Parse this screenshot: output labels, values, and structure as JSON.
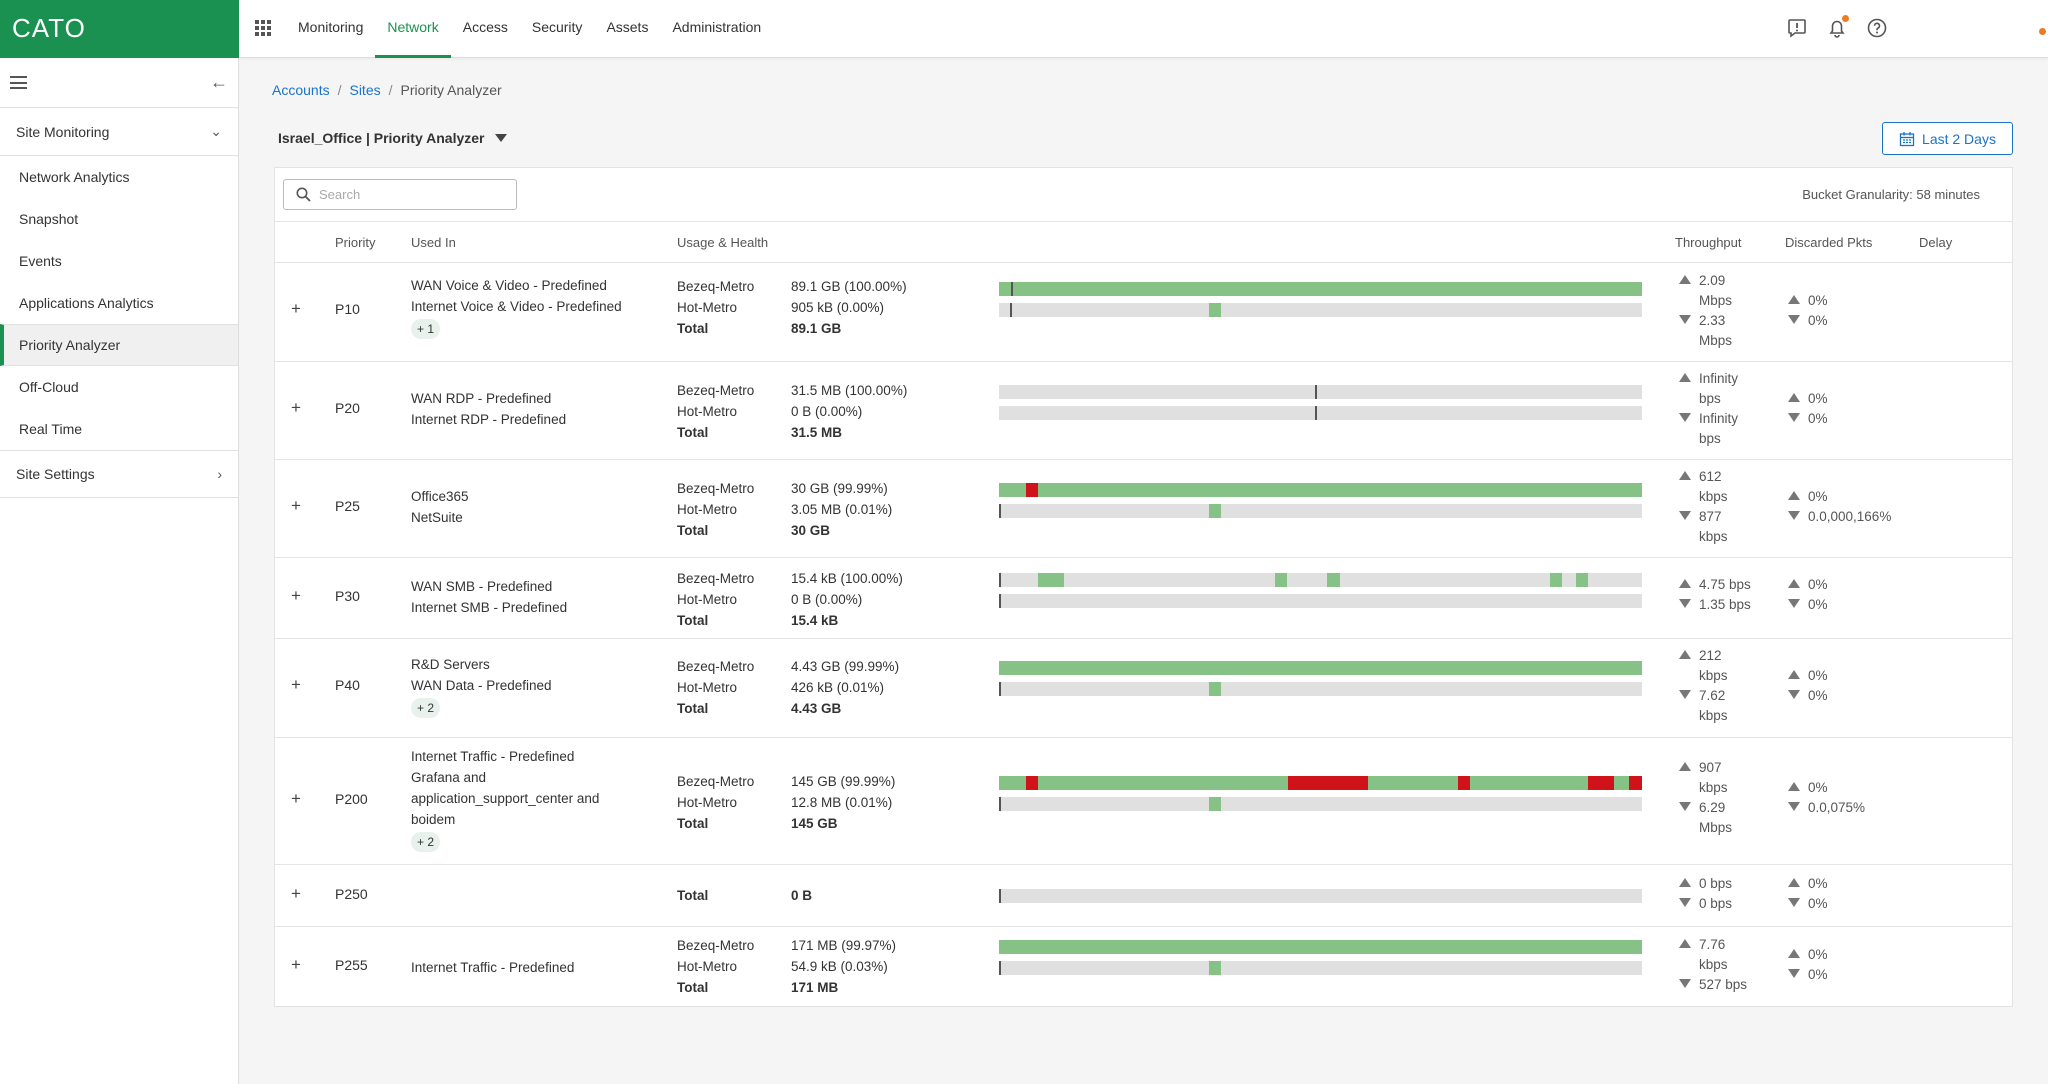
{
  "app": {
    "logo": "CATO"
  },
  "nav": {
    "tabs": [
      "Monitoring",
      "Network",
      "Access",
      "Security",
      "Assets",
      "Administration"
    ],
    "active": "Network"
  },
  "sidebar": {
    "section_monitoring": "Site Monitoring",
    "items": [
      "Network Analytics",
      "Snapshot",
      "Events",
      "Applications Analytics",
      "Priority Analyzer",
      "Off-Cloud",
      "Real Time"
    ],
    "active_item": "Priority Analyzer",
    "section_settings": "Site Settings"
  },
  "breadcrumb": {
    "accounts": "Accounts",
    "sites": "Sites",
    "current": "Priority Analyzer",
    "sep": "/"
  },
  "page": {
    "title": "Israel_Office | Priority Analyzer",
    "date_range": "Last 2 Days"
  },
  "search": {
    "placeholder": "Search",
    "value": ""
  },
  "granularity": "Bucket Granularity: 58 minutes",
  "columns": {
    "priority": "Priority",
    "used_in": "Used In",
    "usage": "Usage & Health",
    "throughput": "Throughput",
    "discarded": "Discarded Pkts",
    "delay": "Delay"
  },
  "colors": {
    "brand": "#1a9150",
    "healthy": "#86c285",
    "bad": "#d0121b",
    "empty": "#e0e0e0",
    "link": "#1a73c8"
  },
  "rows": [
    {
      "priority": "P10",
      "used_in": [
        "WAN Voice & Video - Predefined",
        "Internet Voice & Video - Predefined"
      ],
      "chip": "+ 1",
      "links": [
        "Bezeq-Metro",
        "Hot-Metro"
      ],
      "values": [
        "89.1 GB (100.00%)",
        "905 kB (0.00%)"
      ],
      "total_label": "Total",
      "total": "89.1 GB",
      "throughput_up": [
        "2.09",
        "Mbps"
      ],
      "throughput_down": [
        "2.33",
        "Mbps"
      ],
      "discarded_up": "0%",
      "discarded_down": "0%"
    },
    {
      "priority": "P20",
      "used_in": [
        "WAN RDP - Predefined",
        "Internet RDP - Predefined"
      ],
      "links": [
        "Bezeq-Metro",
        "Hot-Metro"
      ],
      "values": [
        "31.5 MB (100.00%)",
        "0 B (0.00%)"
      ],
      "total_label": "Total",
      "total": "31.5 MB",
      "throughput_up": [
        "Infinity",
        "bps"
      ],
      "throughput_down": [
        "Infinity",
        "bps"
      ],
      "discarded_up": "0%",
      "discarded_down": "0%"
    },
    {
      "priority": "P25",
      "used_in": [
        "Office365",
        "NetSuite"
      ],
      "links": [
        "Bezeq-Metro",
        "Hot-Metro"
      ],
      "values": [
        "30 GB (99.99%)",
        "3.05 MB (0.01%)"
      ],
      "total_label": "Total",
      "total": "30 GB",
      "throughput_up": [
        "612",
        "kbps"
      ],
      "throughput_down": [
        "877",
        "kbps"
      ],
      "discarded_up": "0%",
      "discarded_down": "0.0,000,166%"
    },
    {
      "priority": "P30",
      "used_in": [
        "WAN SMB - Predefined",
        "Internet SMB - Predefined"
      ],
      "links": [
        "Bezeq-Metro",
        "Hot-Metro"
      ],
      "values": [
        "15.4 kB (100.00%)",
        "0 B (0.00%)"
      ],
      "total_label": "Total",
      "total": "15.4 kB",
      "throughput_up": [
        "4.75 bps"
      ],
      "throughput_down": [
        "1.35 bps"
      ],
      "discarded_up": "0%",
      "discarded_down": "0%"
    },
    {
      "priority": "P40",
      "used_in": [
        "R&D Servers",
        "WAN Data - Predefined"
      ],
      "chip": "+ 2",
      "links": [
        "Bezeq-Metro",
        "Hot-Metro"
      ],
      "values": [
        "4.43 GB (99.99%)",
        "426 kB (0.01%)"
      ],
      "total_label": "Total",
      "total": "4.43 GB",
      "throughput_up": [
        "212",
        "kbps"
      ],
      "throughput_down": [
        "7.62",
        "kbps"
      ],
      "discarded_up": "0%",
      "discarded_down": "0%"
    },
    {
      "priority": "P200",
      "used_in": [
        "Internet Traffic - Predefined",
        "Grafana and",
        "application_support_center and",
        "boidem"
      ],
      "chip": "+ 2",
      "links": [
        "Bezeq-Metro",
        "Hot-Metro"
      ],
      "values": [
        "145 GB (99.99%)",
        "12.8 MB (0.01%)"
      ],
      "total_label": "Total",
      "total": "145 GB",
      "throughput_up": [
        "907",
        "kbps"
      ],
      "throughput_down": [
        "6.29",
        "Mbps"
      ],
      "discarded_up": "0%",
      "discarded_down": "0.0,075%"
    },
    {
      "priority": "P250",
      "used_in": [],
      "links": [],
      "values": [],
      "total_label": "Total",
      "total": "0 B",
      "throughput_up": [
        "0 bps"
      ],
      "throughput_down": [
        "0 bps"
      ],
      "discarded_up": "0%",
      "discarded_down": "0%"
    },
    {
      "priority": "P255",
      "used_in": [
        "Internet Traffic - Predefined"
      ],
      "links": [
        "Bezeq-Metro",
        "Hot-Metro"
      ],
      "values": [
        "171 MB (99.97%)",
        "54.9 kB (0.03%)"
      ],
      "total_label": "Total",
      "total": "171 MB",
      "throughput_up": [
        "7.76",
        "kbps"
      ],
      "throughput_down": [
        "527 bps"
      ],
      "discarded_up": "0%",
      "discarded_down": "0%"
    }
  ]
}
